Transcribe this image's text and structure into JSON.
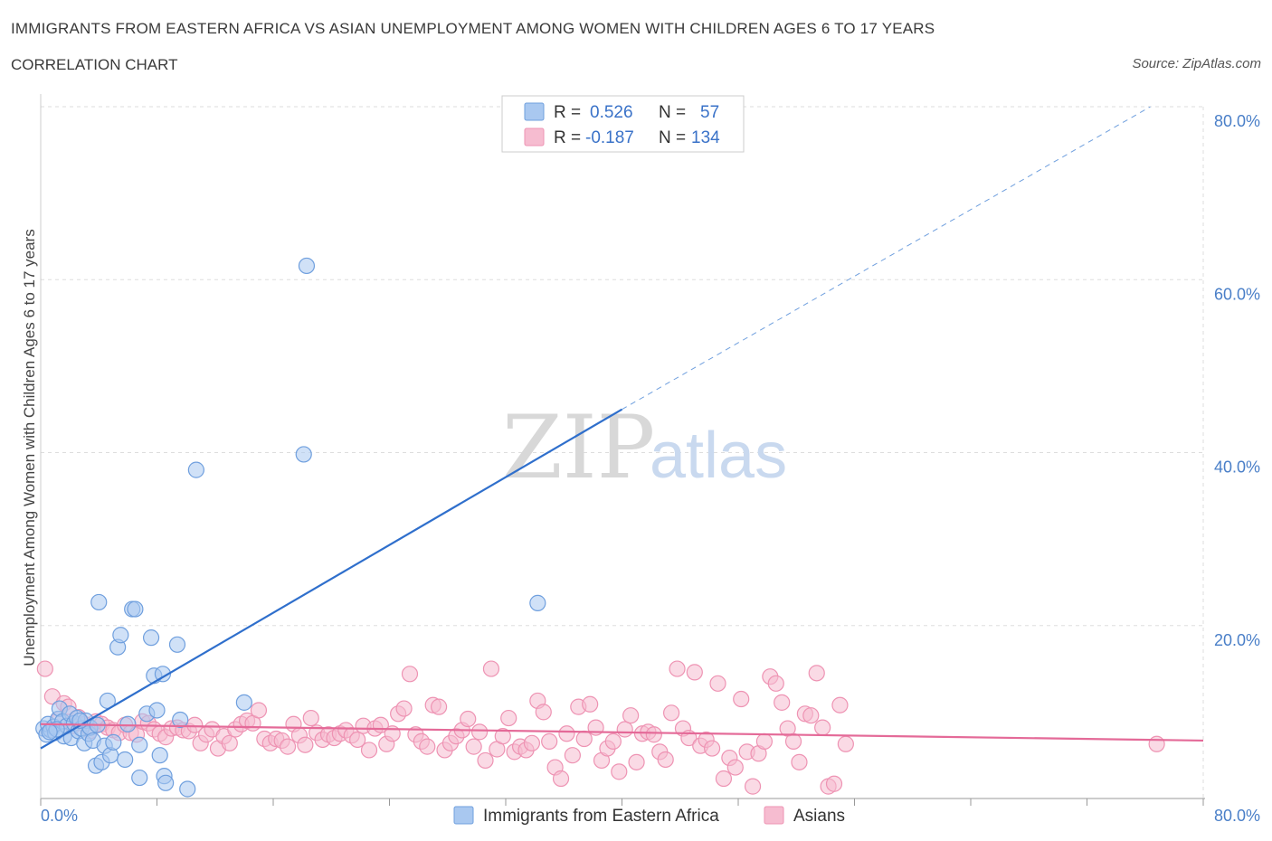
{
  "header": {
    "title": "IMMIGRANTS FROM EASTERN AFRICA VS ASIAN UNEMPLOYMENT AMONG WOMEN WITH CHILDREN AGES 6 TO 17 YEARS",
    "subtitle": "CORRELATION CHART",
    "source": "Source: ZipAtlas.com"
  },
  "watermark": {
    "zip": "ZIP",
    "atlas": "atlas"
  },
  "legend": {
    "r_label": "R =",
    "n_label": "N =",
    "blue": {
      "r": "0.526",
      "n": "57"
    },
    "pink": {
      "r": "-0.187",
      "n": "134"
    }
  },
  "colors": {
    "blue_fill": "#a9c8f0",
    "blue_stroke": "#6f9fde",
    "blue_line": "#2f6fcc",
    "pink_fill": "#f6bcd0",
    "pink_stroke": "#ee93b3",
    "pink_line": "#e46a98",
    "grid": "#dddddd",
    "tick_text": "#4a7fc8"
  },
  "chart_data": {
    "type": "scatter",
    "title": "IMMIGRANTS FROM EASTERN AFRICA VS ASIAN UNEMPLOYMENT AMONG WOMEN WITH CHILDREN AGES 6 TO 17 YEARS",
    "xlabel": "",
    "ylabel": "Unemployment Among Women with Children Ages 6 to 17 years",
    "xlim": [
      0,
      80
    ],
    "ylim": [
      0,
      80
    ],
    "x_tick_labels": [
      "0.0%",
      "80.0%"
    ],
    "y_tick_labels": [
      "20.0%",
      "40.0%",
      "60.0%",
      "80.0%"
    ],
    "y_ticks": [
      20,
      40,
      60,
      80
    ],
    "grid": true,
    "legend_position": "top-center",
    "series": [
      {
        "name": "Immigrants from Eastern Africa",
        "color": "#6f9fde",
        "r": 0.526,
        "n": 57,
        "trend": {
          "x0": 0,
          "y0": 5.8,
          "x1": 40,
          "y1": 45.0,
          "dashed_to_x": 80,
          "dashed_to_y": 83.5
        },
        "points": [
          [
            0.2,
            8.1
          ],
          [
            0.4,
            7.4
          ],
          [
            0.5,
            8.6
          ],
          [
            0.7,
            7.9
          ],
          [
            0.9,
            8.3
          ],
          [
            1.0,
            7.6
          ],
          [
            1.2,
            9.2
          ],
          [
            1.3,
            10.4
          ],
          [
            1.5,
            8.9
          ],
          [
            1.6,
            7.2
          ],
          [
            1.8,
            8.4
          ],
          [
            2.0,
            9.8
          ],
          [
            2.1,
            7.0
          ],
          [
            2.3,
            8.7
          ],
          [
            2.5,
            9.3
          ],
          [
            2.6,
            7.8
          ],
          [
            2.8,
            8.1
          ],
          [
            3.0,
            6.4
          ],
          [
            3.1,
            9.0
          ],
          [
            3.3,
            7.5
          ],
          [
            3.4,
            8.2
          ],
          [
            3.6,
            6.7
          ],
          [
            3.8,
            3.8
          ],
          [
            4.0,
            22.7
          ],
          [
            4.2,
            4.2
          ],
          [
            4.4,
            6.1
          ],
          [
            4.6,
            11.3
          ],
          [
            4.8,
            5.0
          ],
          [
            5.0,
            6.5
          ],
          [
            5.3,
            17.5
          ],
          [
            5.5,
            18.9
          ],
          [
            5.8,
            4.5
          ],
          [
            6.0,
            8.6
          ],
          [
            6.3,
            21.9
          ],
          [
            6.5,
            21.9
          ],
          [
            6.8,
            6.2
          ],
          [
            6.8,
            2.4
          ],
          [
            7.3,
            9.8
          ],
          [
            7.6,
            18.6
          ],
          [
            7.8,
            14.2
          ],
          [
            8.0,
            10.2
          ],
          [
            8.2,
            5.0
          ],
          [
            8.4,
            14.4
          ],
          [
            8.5,
            2.6
          ],
          [
            8.6,
            1.8
          ],
          [
            9.4,
            17.8
          ],
          [
            9.6,
            9.1
          ],
          [
            10.1,
            1.1
          ],
          [
            10.7,
            38.0
          ],
          [
            14.0,
            11.1
          ],
          [
            18.1,
            39.8
          ],
          [
            18.3,
            61.6
          ],
          [
            34.2,
            22.6
          ],
          [
            2.7,
            9.0
          ],
          [
            1.1,
            8.0
          ],
          [
            3.9,
            8.5
          ],
          [
            0.6,
            7.7
          ]
        ]
      },
      {
        "name": "Asians",
        "color": "#ee93b3",
        "r": -0.187,
        "n": 134,
        "trend": {
          "x0": 0,
          "y0": 8.6,
          "x1": 80,
          "y1": 6.7
        },
        "points": [
          [
            0.3,
            15.0
          ],
          [
            0.8,
            11.8
          ],
          [
            1.3,
            9.2
          ],
          [
            1.6,
            11.0
          ],
          [
            1.9,
            10.6
          ],
          [
            2.2,
            8.4
          ],
          [
            2.6,
            9.4
          ],
          [
            3.0,
            8.6
          ],
          [
            3.4,
            7.8
          ],
          [
            3.8,
            8.9
          ],
          [
            4.2,
            8.6
          ],
          [
            4.6,
            8.2
          ],
          [
            5.0,
            7.9
          ],
          [
            5.4,
            7.6
          ],
          [
            5.8,
            8.5
          ],
          [
            6.2,
            7.6
          ],
          [
            6.6,
            7.4
          ],
          [
            7.0,
            8.9
          ],
          [
            7.4,
            8.7
          ],
          [
            7.8,
            8.0
          ],
          [
            8.2,
            7.5
          ],
          [
            8.6,
            7.1
          ],
          [
            9.0,
            8.1
          ],
          [
            9.4,
            8.2
          ],
          [
            9.8,
            7.9
          ],
          [
            10.2,
            7.8
          ],
          [
            10.6,
            8.5
          ],
          [
            11.0,
            6.4
          ],
          [
            11.4,
            7.4
          ],
          [
            11.8,
            8.0
          ],
          [
            12.2,
            5.8
          ],
          [
            12.6,
            7.2
          ],
          [
            13.0,
            6.4
          ],
          [
            13.4,
            8.0
          ],
          [
            13.8,
            8.6
          ],
          [
            14.2,
            9.0
          ],
          [
            14.6,
            8.7
          ],
          [
            15.0,
            10.2
          ],
          [
            15.4,
            6.9
          ],
          [
            15.8,
            6.4
          ],
          [
            16.2,
            6.9
          ],
          [
            16.6,
            6.7
          ],
          [
            17.0,
            6.0
          ],
          [
            17.4,
            8.6
          ],
          [
            17.8,
            7.3
          ],
          [
            18.2,
            6.2
          ],
          [
            18.6,
            9.3
          ],
          [
            19.0,
            7.6
          ],
          [
            19.4,
            6.8
          ],
          [
            19.8,
            7.4
          ],
          [
            20.2,
            7.0
          ],
          [
            20.6,
            7.5
          ],
          [
            21.0,
            7.9
          ],
          [
            21.4,
            7.3
          ],
          [
            21.8,
            6.8
          ],
          [
            22.2,
            8.4
          ],
          [
            22.6,
            5.6
          ],
          [
            23.0,
            8.1
          ],
          [
            23.4,
            8.5
          ],
          [
            23.8,
            6.3
          ],
          [
            24.2,
            7.5
          ],
          [
            24.6,
            9.8
          ],
          [
            25.0,
            10.4
          ],
          [
            25.4,
            14.4
          ],
          [
            25.8,
            7.4
          ],
          [
            26.2,
            6.6
          ],
          [
            26.6,
            6.0
          ],
          [
            27.0,
            10.8
          ],
          [
            27.4,
            10.6
          ],
          [
            27.8,
            5.6
          ],
          [
            28.2,
            6.4
          ],
          [
            28.6,
            7.2
          ],
          [
            29.0,
            7.9
          ],
          [
            29.4,
            9.2
          ],
          [
            29.8,
            6.0
          ],
          [
            30.2,
            7.7
          ],
          [
            30.6,
            4.4
          ],
          [
            31.0,
            15.0
          ],
          [
            31.4,
            5.7
          ],
          [
            31.8,
            7.2
          ],
          [
            32.2,
            9.3
          ],
          [
            32.6,
            5.4
          ],
          [
            33.0,
            6.0
          ],
          [
            33.4,
            5.6
          ],
          [
            33.8,
            6.4
          ],
          [
            34.2,
            11.3
          ],
          [
            34.6,
            10.0
          ],
          [
            35.0,
            6.6
          ],
          [
            35.4,
            3.6
          ],
          [
            35.8,
            2.3
          ],
          [
            36.2,
            7.5
          ],
          [
            36.6,
            5.0
          ],
          [
            37.0,
            10.6
          ],
          [
            37.4,
            6.9
          ],
          [
            37.8,
            10.9
          ],
          [
            38.2,
            8.2
          ],
          [
            38.6,
            4.4
          ],
          [
            39.0,
            5.8
          ],
          [
            39.4,
            6.6
          ],
          [
            39.8,
            3.1
          ],
          [
            40.2,
            8.0
          ],
          [
            40.6,
            9.6
          ],
          [
            41.0,
            4.2
          ],
          [
            41.4,
            7.5
          ],
          [
            41.8,
            7.7
          ],
          [
            42.2,
            7.4
          ],
          [
            42.6,
            5.4
          ],
          [
            43.0,
            4.5
          ],
          [
            43.4,
            9.9
          ],
          [
            43.8,
            15.0
          ],
          [
            44.2,
            8.1
          ],
          [
            44.6,
            7.0
          ],
          [
            45.0,
            14.6
          ],
          [
            45.4,
            6.1
          ],
          [
            45.8,
            6.8
          ],
          [
            46.2,
            5.8
          ],
          [
            46.6,
            13.3
          ],
          [
            47.0,
            2.3
          ],
          [
            47.4,
            4.7
          ],
          [
            47.8,
            3.6
          ],
          [
            48.2,
            11.5
          ],
          [
            48.6,
            5.4
          ],
          [
            49.0,
            1.4
          ],
          [
            49.4,
            5.2
          ],
          [
            49.8,
            6.6
          ],
          [
            50.2,
            14.1
          ],
          [
            50.6,
            13.3
          ],
          [
            51.0,
            11.1
          ],
          [
            51.4,
            8.1
          ],
          [
            51.8,
            6.6
          ],
          [
            52.2,
            4.2
          ],
          [
            52.6,
            9.8
          ],
          [
            53.0,
            9.6
          ],
          [
            53.4,
            14.5
          ],
          [
            53.8,
            8.2
          ],
          [
            54.2,
            1.4
          ],
          [
            54.6,
            1.7
          ],
          [
            55.0,
            10.8
          ],
          [
            55.4,
            6.3
          ],
          [
            76.8,
            6.3
          ]
        ]
      }
    ]
  },
  "bottom_legend": {
    "blue_label": "Immigrants from Eastern Africa",
    "pink_label": "Asians"
  }
}
